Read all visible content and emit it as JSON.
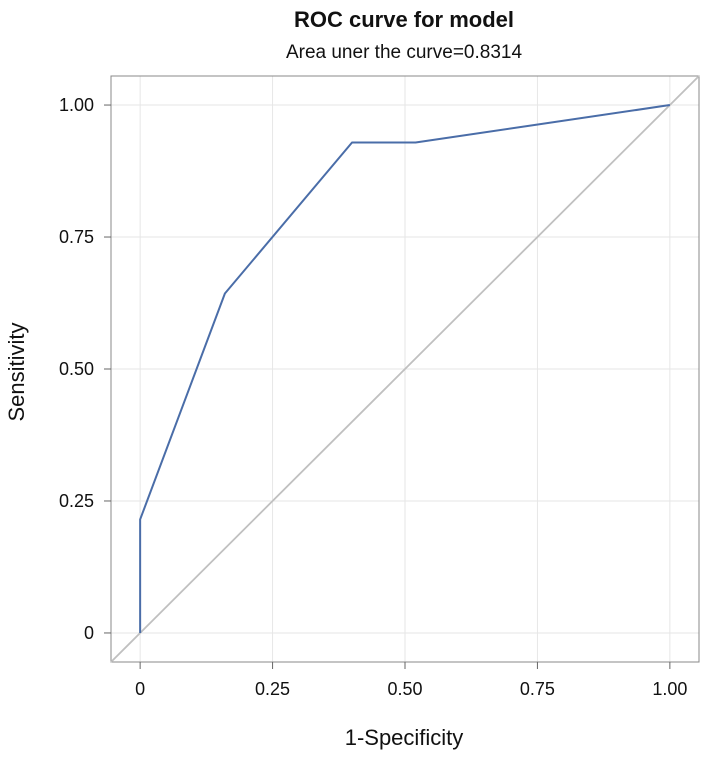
{
  "chart_data": {
    "type": "line",
    "title": "ROC curve for model",
    "subtitle": "Area uner the curve=0.8314",
    "xlabel": "1-Specificity",
    "ylabel": "Sensitivity",
    "xlim": [
      -0.055,
      1.055
    ],
    "ylim": [
      -0.055,
      1.055
    ],
    "xticks": [
      0,
      0.25,
      0.5,
      0.75,
      1
    ],
    "xtick_labels": [
      "0",
      "0.25",
      "0.50",
      "0.75",
      "1.00"
    ],
    "yticks": [
      0,
      0.25,
      0.5,
      0.75,
      1
    ],
    "ytick_labels": [
      "0",
      "0.25",
      "0.50",
      "0.75",
      "1.00"
    ],
    "grid": true,
    "series": [
      {
        "x": [
          0,
          0,
          0.16,
          0.4,
          0.52,
          1
        ],
        "y": [
          0,
          0.215,
          0.643,
          0.929,
          0.929,
          1
        ],
        "color": "#4a6da8"
      },
      {
        "x": [
          -0.055,
          1.055
        ],
        "y": [
          -0.055,
          1.055
        ],
        "color": "#c0c0c0"
      }
    ]
  }
}
